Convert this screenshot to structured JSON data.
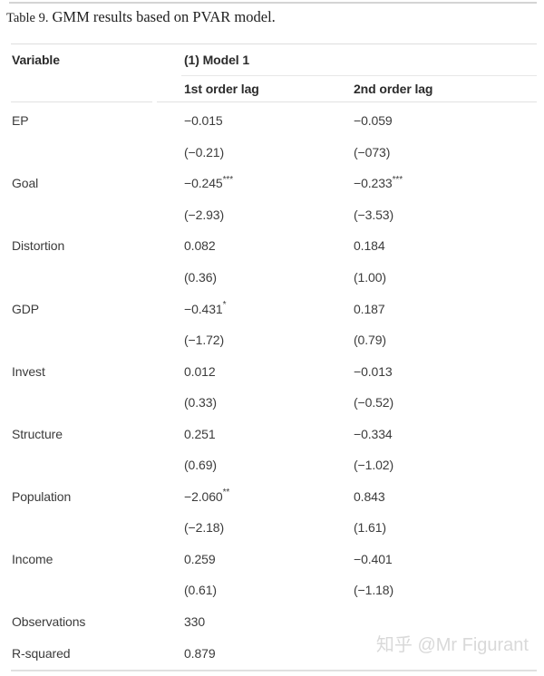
{
  "caption": {
    "label": "Table 9.",
    "text": "GMM results based on PVAR model."
  },
  "table": {
    "headers": {
      "variable": "Variable",
      "model": "(1) Model 1",
      "lag1": "1st order lag",
      "lag2": "2nd order lag"
    },
    "rows": [
      {
        "label": "EP",
        "lag1": "−0.015",
        "lag1_sup": "",
        "lag2": "−0.059",
        "lag2_sup": ""
      },
      {
        "label": "",
        "lag1": "(−0.21)",
        "lag1_sup": "",
        "lag2": "(−073)",
        "lag2_sup": ""
      },
      {
        "label": "Goal",
        "lag1": "−0.245",
        "lag1_sup": "***",
        "lag2": "−0.233",
        "lag2_sup": "***"
      },
      {
        "label": "",
        "lag1": "(−2.93)",
        "lag1_sup": "",
        "lag2": "(−3.53)",
        "lag2_sup": ""
      },
      {
        "label": "Distortion",
        "lag1": "0.082",
        "lag1_sup": "",
        "lag2": "0.184",
        "lag2_sup": ""
      },
      {
        "label": "",
        "lag1": "(0.36)",
        "lag1_sup": "",
        "lag2": "(1.00)",
        "lag2_sup": ""
      },
      {
        "label": "GDP",
        "lag1": "−0.431",
        "lag1_sup": "*",
        "lag2": "0.187",
        "lag2_sup": ""
      },
      {
        "label": "",
        "lag1": "(−1.72)",
        "lag1_sup": "",
        "lag2": "(0.79)",
        "lag2_sup": ""
      },
      {
        "label": "Invest",
        "lag1": "0.012",
        "lag1_sup": "",
        "lag2": "−0.013",
        "lag2_sup": ""
      },
      {
        "label": "",
        "lag1": "(0.33)",
        "lag1_sup": "",
        "lag2": "(−0.52)",
        "lag2_sup": ""
      },
      {
        "label": "Structure",
        "lag1": "0.251",
        "lag1_sup": "",
        "lag2": "−0.334",
        "lag2_sup": ""
      },
      {
        "label": "",
        "lag1": "(0.69)",
        "lag1_sup": "",
        "lag2": "(−1.02)",
        "lag2_sup": ""
      },
      {
        "label": "Population",
        "lag1": "−2.060",
        "lag1_sup": "**",
        "lag2": "0.843",
        "lag2_sup": ""
      },
      {
        "label": "",
        "lag1": "(−2.18)",
        "lag1_sup": "",
        "lag2": "(1.61)",
        "lag2_sup": ""
      },
      {
        "label": "Income",
        "lag1": "0.259",
        "lag1_sup": "",
        "lag2": "−0.401",
        "lag2_sup": ""
      },
      {
        "label": "",
        "lag1": "(0.61)",
        "lag1_sup": "",
        "lag2": "(−1.18)",
        "lag2_sup": ""
      },
      {
        "label": "Observations",
        "lag1": "330",
        "lag1_sup": "",
        "lag2": "",
        "lag2_sup": ""
      },
      {
        "label": "R-squared",
        "lag1": "0.879",
        "lag1_sup": "",
        "lag2": "",
        "lag2_sup": ""
      }
    ]
  },
  "watermark": {
    "site": "知乎",
    "handle": "@Mr Figurant"
  },
  "colors": {
    "caption_ink": "#212121",
    "header_ink": "#2b2b2b",
    "body_ink": "#3b3b3b",
    "rule": "#dedede",
    "rule_top": "#d4d4d4",
    "watermark_ink": "#d9d9d9"
  }
}
